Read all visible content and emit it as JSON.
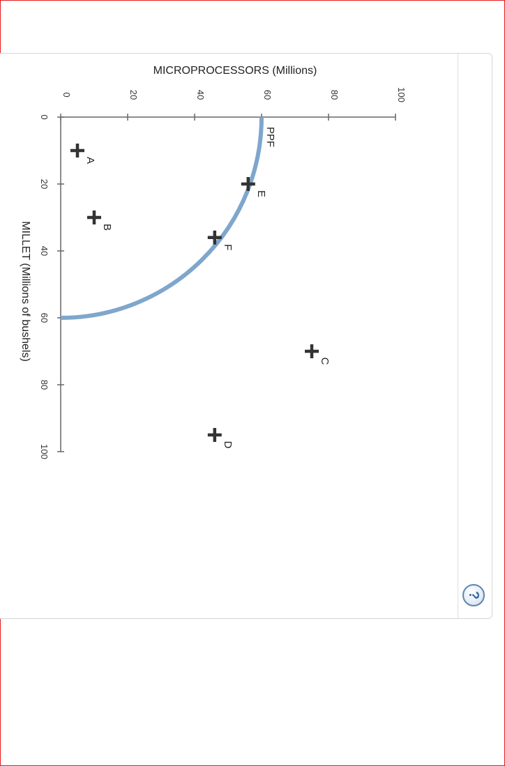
{
  "chart_data": {
    "type": "scatter",
    "title": "",
    "xlabel": "MICROPROCESSORS (Millions)",
    "ylabel": "MILLET (Millions of bushels)",
    "xlim": [
      0,
      100
    ],
    "ylim": [
      0,
      100
    ],
    "xticks": [
      0,
      20,
      40,
      60,
      80,
      100
    ],
    "yticks": [
      0,
      20,
      40,
      60,
      80,
      100
    ],
    "orientation": "rotated 90 degrees clockwise",
    "grid": false,
    "curve": {
      "name": "PPF",
      "color": "#7fa6cc",
      "shape": "quarter circle",
      "x_intercept": 60,
      "y_intercept": 60
    },
    "points": [
      {
        "label": "A",
        "x": 5,
        "y": 10
      },
      {
        "label": "B",
        "x": 10,
        "y": 30
      },
      {
        "label": "E",
        "x": 56,
        "y": 20
      },
      {
        "label": "F",
        "x": 46,
        "y": 36
      },
      {
        "label": "C",
        "x": 75,
        "y": 70
      },
      {
        "label": "D",
        "x": 46,
        "y": 95
      }
    ],
    "marker": "plus",
    "marker_color": "#333333"
  },
  "help": {
    "label": "?"
  }
}
